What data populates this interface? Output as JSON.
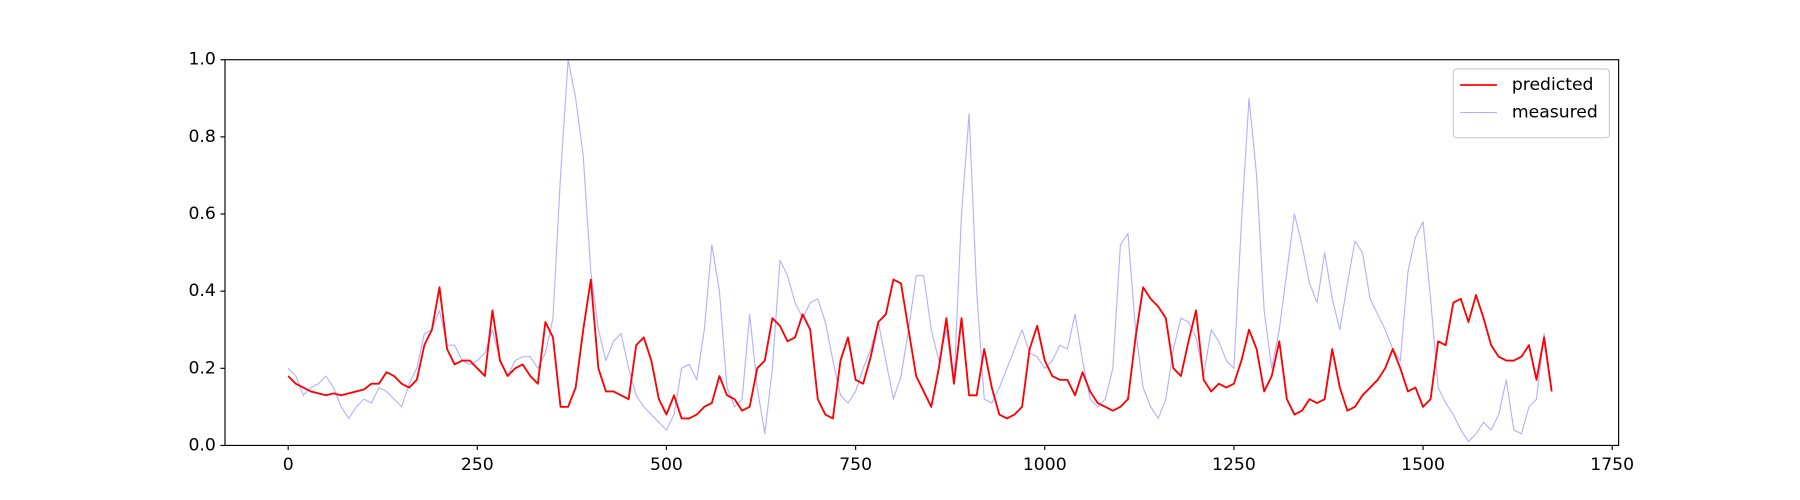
{
  "chart_data": {
    "type": "line",
    "x": [
      0,
      10,
      20,
      30,
      40,
      50,
      60,
      70,
      80,
      90,
      100,
      110,
      120,
      130,
      140,
      150,
      160,
      170,
      180,
      190,
      200,
      210,
      220,
      230,
      240,
      250,
      260,
      270,
      280,
      290,
      300,
      310,
      320,
      330,
      340,
      350,
      360,
      370,
      380,
      390,
      400,
      410,
      420,
      430,
      440,
      450,
      460,
      470,
      480,
      490,
      500,
      510,
      520,
      530,
      540,
      550,
      560,
      570,
      580,
      590,
      600,
      610,
      620,
      630,
      640,
      650,
      660,
      670,
      680,
      690,
      700,
      710,
      720,
      730,
      740,
      750,
      760,
      770,
      780,
      790,
      800,
      810,
      820,
      830,
      840,
      850,
      860,
      870,
      880,
      890,
      900,
      910,
      920,
      930,
      940,
      950,
      960,
      970,
      980,
      990,
      1000,
      1010,
      1020,
      1030,
      1040,
      1050,
      1060,
      1070,
      1080,
      1090,
      1100,
      1110,
      1120,
      1130,
      1140,
      1150,
      1160,
      1170,
      1180,
      1190,
      1200,
      1210,
      1220,
      1230,
      1240,
      1250,
      1260,
      1270,
      1280,
      1290,
      1300,
      1310,
      1320,
      1330,
      1340,
      1350,
      1360,
      1370,
      1380,
      1390,
      1400,
      1410,
      1420,
      1430,
      1440,
      1450,
      1460,
      1470,
      1480,
      1490,
      1500,
      1510,
      1520,
      1530,
      1540,
      1550,
      1560,
      1570,
      1580,
      1590,
      1600,
      1610,
      1620,
      1630,
      1640,
      1650,
      1660,
      1670
    ],
    "series": [
      {
        "name": "predicted",
        "color": "#ff0000",
        "width": 1.6,
        "opacity": 1,
        "values": [
          0.18,
          0.16,
          0.15,
          0.14,
          0.135,
          0.13,
          0.135,
          0.13,
          0.135,
          0.14,
          0.145,
          0.16,
          0.16,
          0.19,
          0.18,
          0.16,
          0.15,
          0.17,
          0.26,
          0.3,
          0.41,
          0.25,
          0.21,
          0.22,
          0.22,
          0.2,
          0.18,
          0.35,
          0.22,
          0.18,
          0.2,
          0.21,
          0.18,
          0.16,
          0.32,
          0.28,
          0.1,
          0.1,
          0.15,
          0.3,
          0.43,
          0.2,
          0.14,
          0.14,
          0.13,
          0.12,
          0.26,
          0.28,
          0.22,
          0.12,
          0.08,
          0.13,
          0.07,
          0.07,
          0.08,
          0.1,
          0.11,
          0.18,
          0.13,
          0.12,
          0.09,
          0.1,
          0.2,
          0.22,
          0.33,
          0.31,
          0.27,
          0.28,
          0.34,
          0.3,
          0.12,
          0.08,
          0.07,
          0.22,
          0.28,
          0.17,
          0.16,
          0.23,
          0.32,
          0.34,
          0.43,
          0.42,
          0.3,
          0.18,
          0.14,
          0.1,
          0.2,
          0.33,
          0.16,
          0.33,
          0.13,
          0.13,
          0.25,
          0.15,
          0.08,
          0.07,
          0.08,
          0.1,
          0.25,
          0.31,
          0.22,
          0.18,
          0.17,
          0.17,
          0.13,
          0.19,
          0.14,
          0.11,
          0.1,
          0.09,
          0.1,
          0.12,
          0.28,
          0.41,
          0.38,
          0.36,
          0.33,
          0.2,
          0.18,
          0.27,
          0.35,
          0.17,
          0.14,
          0.16,
          0.15,
          0.16,
          0.22,
          0.3,
          0.25,
          0.14,
          0.18,
          0.27,
          0.12,
          0.08,
          0.09,
          0.12,
          0.11,
          0.12,
          0.25,
          0.15,
          0.09,
          0.1,
          0.13,
          0.15,
          0.17,
          0.2,
          0.25,
          0.2,
          0.14,
          0.15,
          0.1,
          0.12,
          0.27,
          0.26,
          0.37,
          0.38,
          0.32,
          0.39,
          0.33,
          0.26,
          0.23,
          0.22,
          0.22,
          0.23,
          0.26,
          0.17,
          0.28,
          0.14
        ]
      },
      {
        "name": "measured",
        "color": "#0000ff",
        "width": 1,
        "opacity": 0.3,
        "values": [
          0.2,
          0.18,
          0.13,
          0.15,
          0.16,
          0.18,
          0.15,
          0.1,
          0.07,
          0.1,
          0.12,
          0.11,
          0.15,
          0.14,
          0.12,
          0.1,
          0.16,
          0.2,
          0.29,
          0.3,
          0.35,
          0.26,
          0.26,
          0.22,
          0.21,
          0.22,
          0.24,
          0.3,
          0.22,
          0.18,
          0.22,
          0.23,
          0.23,
          0.2,
          0.24,
          0.33,
          0.7,
          1.0,
          0.9,
          0.75,
          0.45,
          0.3,
          0.22,
          0.27,
          0.29,
          0.2,
          0.13,
          0.1,
          0.08,
          0.06,
          0.04,
          0.08,
          0.2,
          0.21,
          0.17,
          0.3,
          0.52,
          0.4,
          0.15,
          0.1,
          0.12,
          0.34,
          0.15,
          0.03,
          0.2,
          0.48,
          0.44,
          0.37,
          0.33,
          0.37,
          0.38,
          0.32,
          0.22,
          0.13,
          0.11,
          0.14,
          0.2,
          0.25,
          0.32,
          0.22,
          0.12,
          0.18,
          0.3,
          0.44,
          0.44,
          0.3,
          0.22,
          0.3,
          0.16,
          0.6,
          0.86,
          0.4,
          0.12,
          0.11,
          0.15,
          0.2,
          0.25,
          0.3,
          0.24,
          0.23,
          0.2,
          0.22,
          0.26,
          0.25,
          0.34,
          0.22,
          0.12,
          0.1,
          0.12,
          0.2,
          0.52,
          0.55,
          0.3,
          0.15,
          0.1,
          0.07,
          0.12,
          0.25,
          0.33,
          0.32,
          0.28,
          0.18,
          0.3,
          0.27,
          0.22,
          0.2,
          0.58,
          0.9,
          0.7,
          0.35,
          0.2,
          0.3,
          0.45,
          0.6,
          0.52,
          0.42,
          0.37,
          0.5,
          0.38,
          0.3,
          0.42,
          0.53,
          0.5,
          0.38,
          0.34,
          0.3,
          0.25,
          0.22,
          0.45,
          0.54,
          0.58,
          0.38,
          0.15,
          0.11,
          0.08,
          0.04,
          0.01,
          0.03,
          0.06,
          0.04,
          0.08,
          0.17,
          0.04,
          0.03,
          0.1,
          0.12,
          0.29,
          0.15
        ]
      }
    ],
    "xlim": [
      -83.5,
      1758.5
    ],
    "ylim": [
      0,
      1
    ],
    "xticks": [
      0,
      250,
      500,
      750,
      1000,
      1250,
      1500,
      1750
    ],
    "yticks": [
      {
        "value": 0,
        "label": "0.0"
      },
      0.2,
      0.4,
      0.6,
      0.8,
      {
        "value": 1,
        "label": "1.0"
      }
    ],
    "legend": "upper right"
  }
}
